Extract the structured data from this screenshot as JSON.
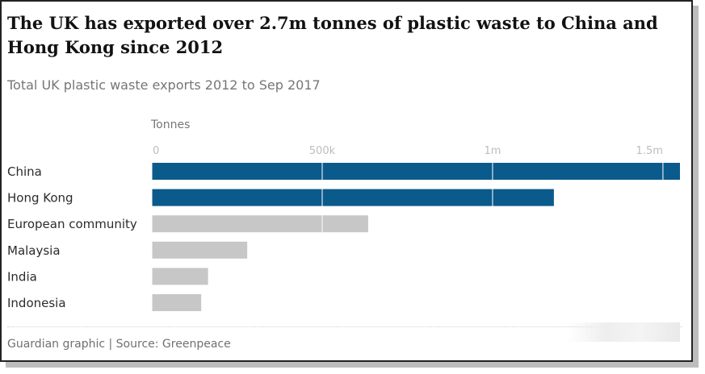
{
  "title": "The UK has exported over 2.7m tonnes of plastic waste to China and Hong Kong since 2012",
  "subtitle": "Total UK plastic waste exports 2012 to Sep 2017",
  "unit_label": "Tonnes",
  "source": "Guardian graphic | Source: Greenpeace",
  "colors": {
    "highlight": "#0b5a8c",
    "muted": "#c7c7c7",
    "gridline": "#ffffff"
  },
  "chart_data": {
    "type": "bar",
    "orientation": "horizontal",
    "ylabel": "Tonnes",
    "xlim": [
      0,
      1550000
    ],
    "ticks": [
      {
        "value": 0,
        "label": "0"
      },
      {
        "value": 500000,
        "label": "500k"
      },
      {
        "value": 1000000,
        "label": "1m"
      },
      {
        "value": 1500000,
        "label": "1.5m"
      }
    ],
    "categories": [
      "China",
      "Hong Kong",
      "European community",
      "Malaysia",
      "India",
      "Indonesia"
    ],
    "values": [
      1550000,
      1180000,
      635000,
      280000,
      165000,
      145000
    ],
    "highlighted": [
      true,
      true,
      false,
      false,
      false,
      false
    ],
    "grid": true
  }
}
